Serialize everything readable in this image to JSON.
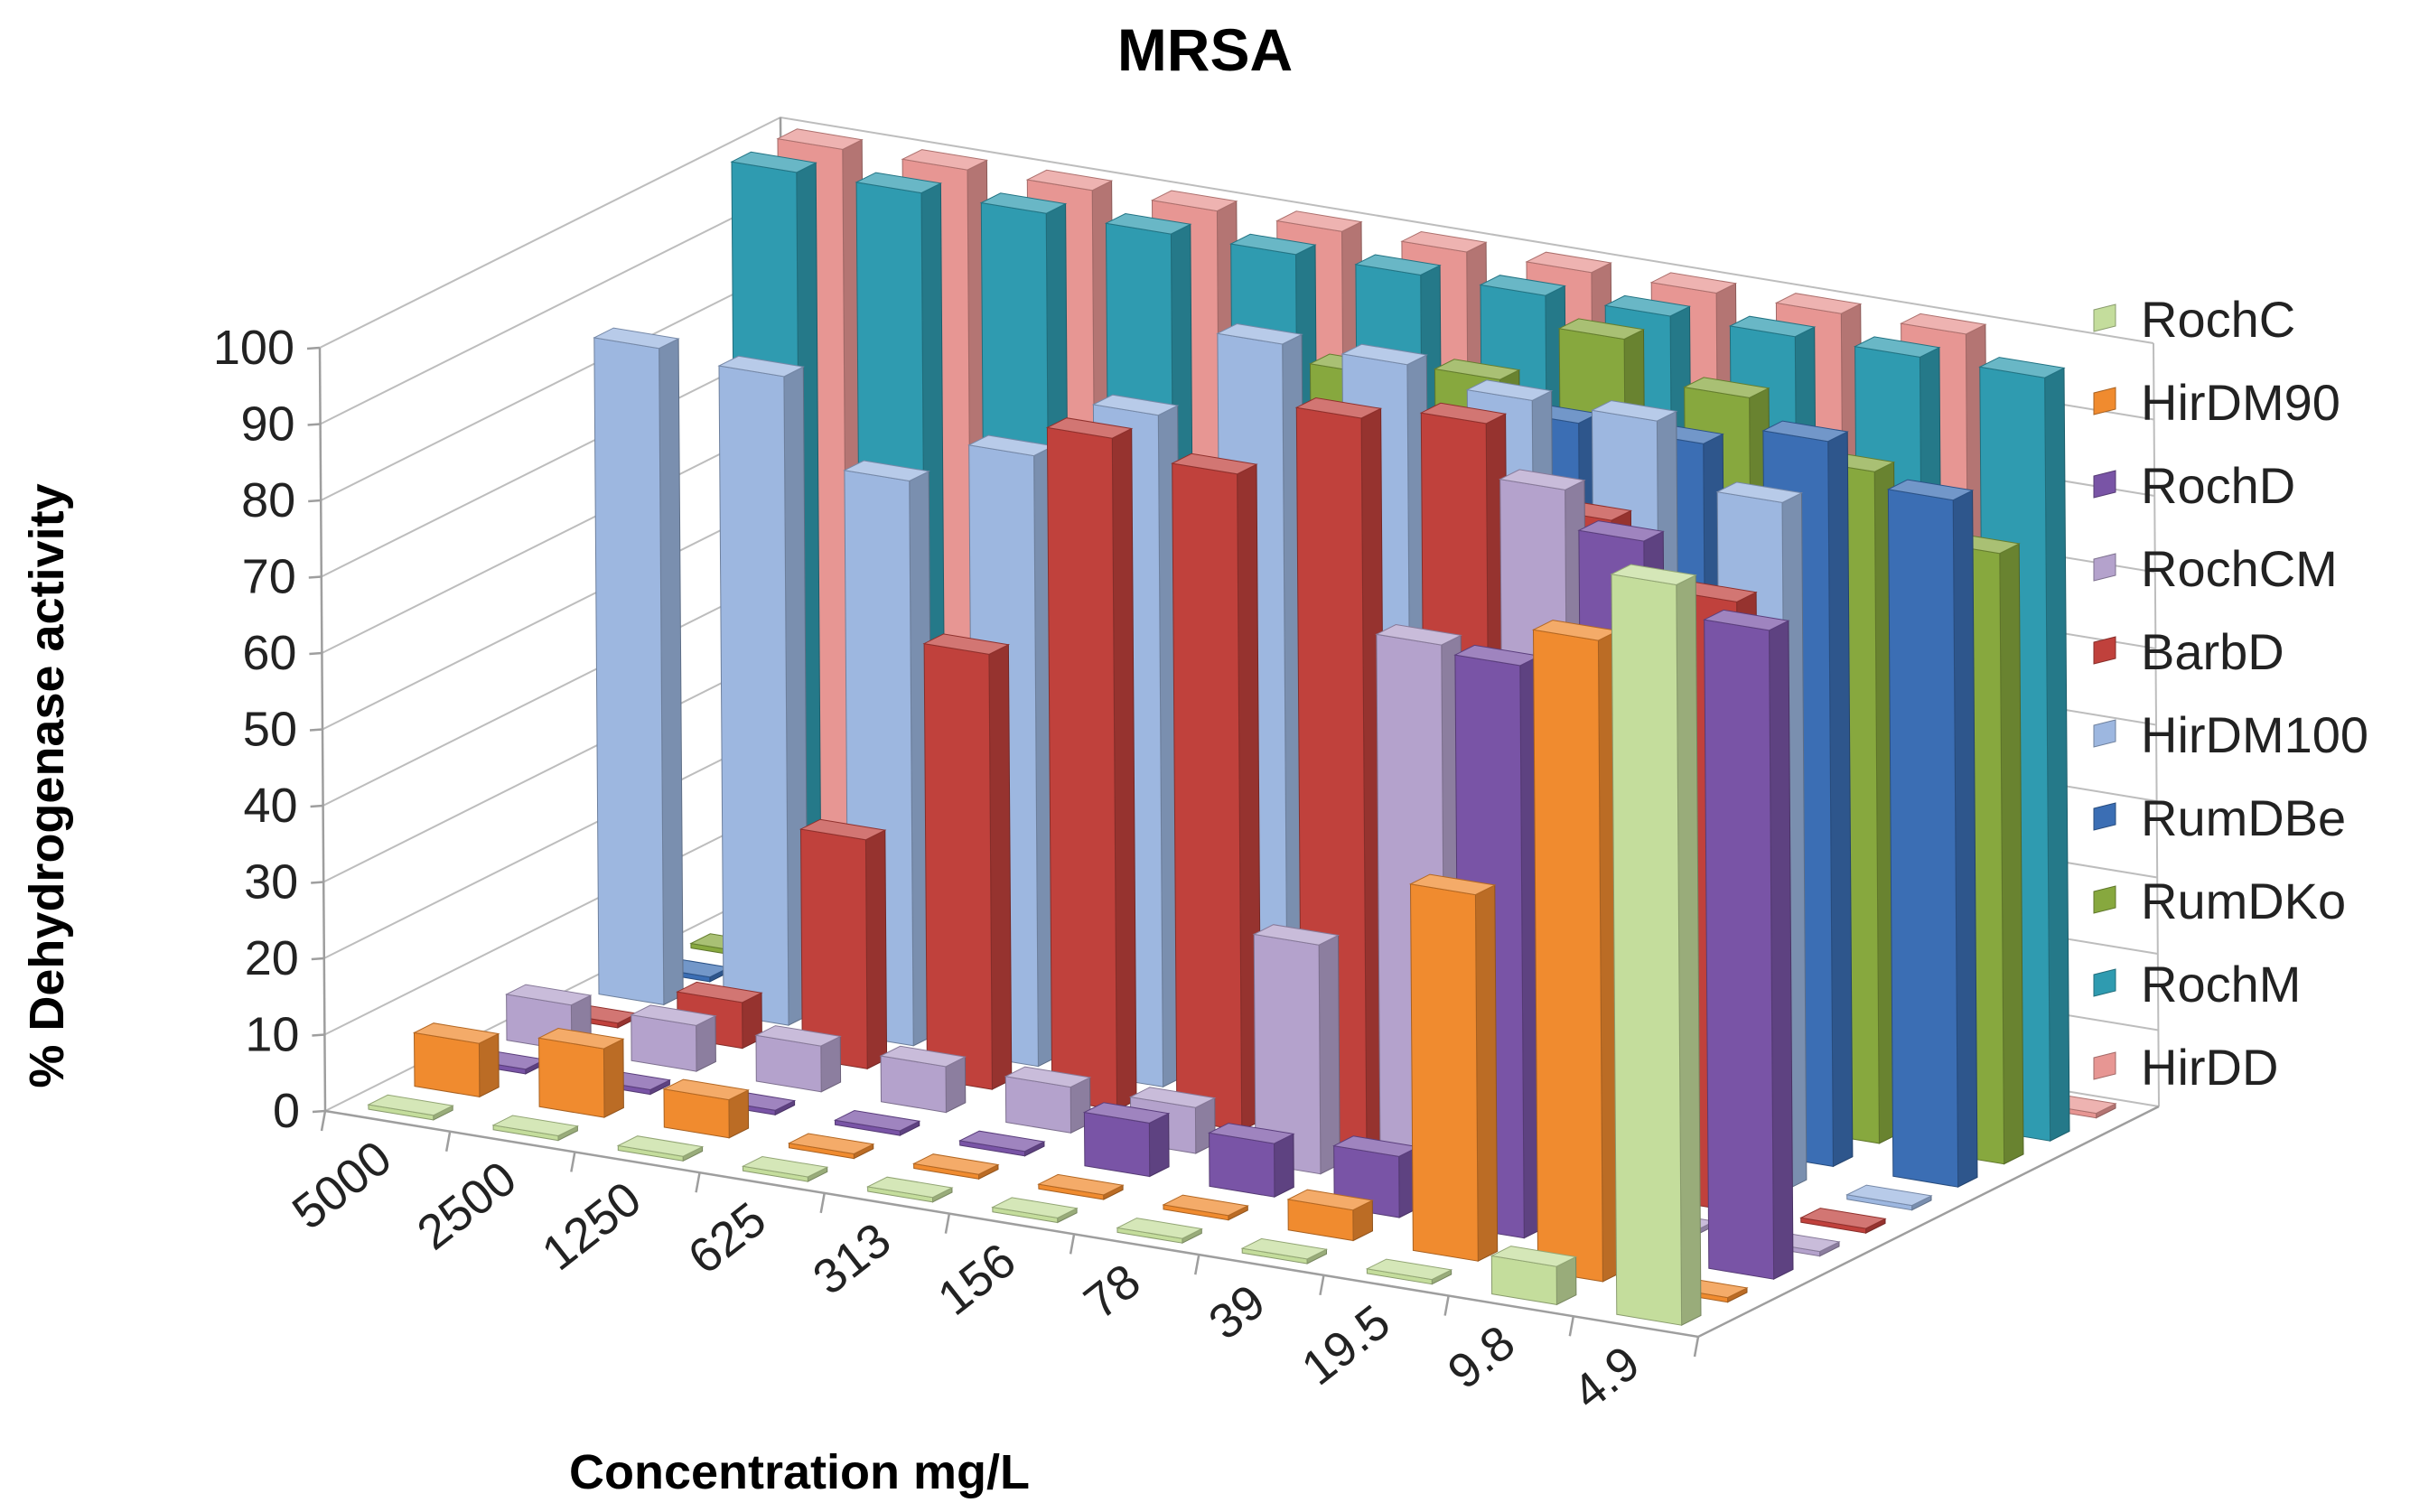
{
  "chart_data": {
    "type": "bar",
    "subtype": "3d-column",
    "title": "MRSA",
    "xlabel": "Concentration mg/L",
    "ylabel": "% Dehydrogenase activity",
    "ylim": [
      0,
      100
    ],
    "yticks": [
      "0",
      "10",
      "20",
      "30",
      "40",
      "50",
      "60",
      "70",
      "80",
      "90",
      "100"
    ],
    "categories": [
      "5000",
      "2500",
      "1250",
      "625",
      "313",
      "156",
      "78",
      "39",
      "19.5",
      "9.8",
      "4.9"
    ],
    "legend_position": "right",
    "grid": true,
    "series": [
      {
        "name": "RochC",
        "color": "#c4dd9c",
        "values": [
          0,
          0,
          0,
          0,
          0,
          0,
          0,
          0,
          0,
          5,
          97
        ]
      },
      {
        "name": "HirDM90",
        "color": "#f08b2f",
        "values": [
          7,
          9,
          5,
          0,
          0,
          0,
          0,
          4,
          48,
          84,
          0
        ]
      },
      {
        "name": "RochD",
        "color": "#7954a6",
        "values": [
          0,
          0,
          0,
          0,
          0,
          7,
          7,
          8,
          75,
          94,
          85
        ]
      },
      {
        "name": "RochCM",
        "color": "#b4a2cc",
        "values": [
          6,
          6,
          6,
          6,
          6,
          6,
          30,
          72,
          95,
          0,
          0
        ]
      },
      {
        "name": "BarbD",
        "color": "#c0413c",
        "values": [
          0,
          6,
          30,
          57,
          88,
          86,
          96,
          98,
          88,
          80,
          0
        ]
      },
      {
        "name": "HirDM100",
        "color": "#9db7e0",
        "values": [
          86,
          85,
          74,
          80,
          88,
          100,
          100,
          98,
          98,
          90,
          0
        ]
      },
      {
        "name": "RumDBe",
        "color": "#3b6eb4",
        "values": [
          0,
          0,
          0,
          0,
          60,
          75,
          82,
          92,
          92,
          95,
          90
        ]
      },
      {
        "name": "RumDKo",
        "color": "#87a83e",
        "values": [
          0,
          0,
          0,
          0,
          0,
          90,
          92,
          100,
          95,
          88,
          80
        ]
      },
      {
        "name": "RochM",
        "color": "#2f9bb0",
        "values": [
          100,
          100,
          100,
          100,
          100,
          100,
          100,
          100,
          100,
          100,
          100
        ]
      },
      {
        "name": "HirDD",
        "color": "#e79693",
        "values": [
          100,
          100,
          100,
          100,
          100,
          100,
          100,
          100,
          100,
          100,
          0
        ]
      }
    ]
  }
}
